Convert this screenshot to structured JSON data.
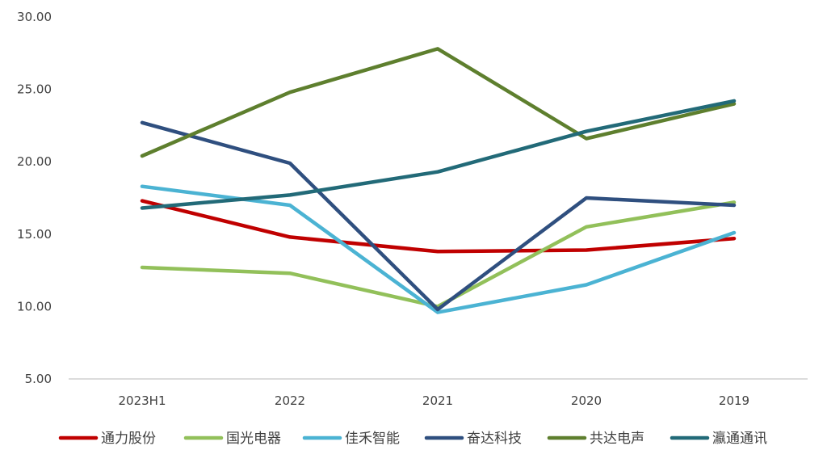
{
  "chart_data": {
    "type": "line",
    "categories": [
      "2023H1",
      "2022",
      "2021",
      "2020",
      "2019"
    ],
    "ylim": [
      5,
      30
    ],
    "yticks": [
      "5.00",
      "10.00",
      "15.00",
      "20.00",
      "25.00",
      "30.00"
    ],
    "grid": false,
    "legend_position": "bottom",
    "series": [
      {
        "name": "通力股份",
        "color": "#c00000",
        "values": [
          17.3,
          14.8,
          13.8,
          13.9,
          14.7
        ]
      },
      {
        "name": "国光电器",
        "color": "#92c05a",
        "values": [
          12.7,
          12.3,
          10.0,
          15.5,
          17.2
        ]
      },
      {
        "name": "佳禾智能",
        "color": "#4bb3d3",
        "values": [
          18.3,
          17.0,
          9.6,
          11.5,
          15.1
        ]
      },
      {
        "name": "奋达科技",
        "color": "#2f4f7f",
        "values": [
          22.7,
          19.9,
          9.8,
          17.5,
          17.0
        ]
      },
      {
        "name": "共达电声",
        "color": "#5e7f2e",
        "values": [
          20.4,
          24.8,
          27.8,
          21.6,
          24.0
        ]
      },
      {
        "name": "瀛通通讯",
        "color": "#226a78",
        "values": [
          16.8,
          17.7,
          19.3,
          22.1,
          24.2
        ]
      }
    ]
  }
}
